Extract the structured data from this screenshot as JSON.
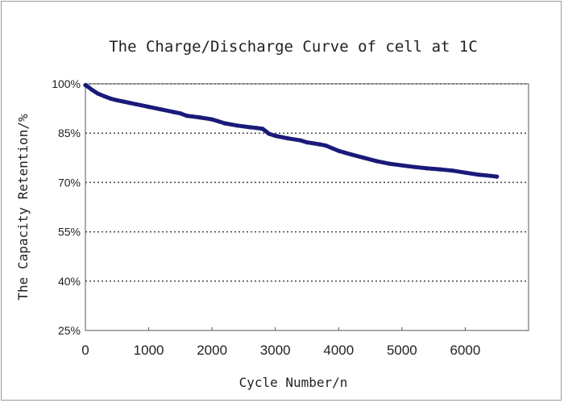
{
  "chart_data": {
    "type": "line",
    "title": "The Charge/Discharge Curve of cell at 1C",
    "xlabel": "Cycle Number/n",
    "ylabel": "The Capacity Retention/%",
    "xlim": [
      0,
      7000
    ],
    "ylim": [
      25,
      100
    ],
    "x_ticks": [
      0,
      1000,
      2000,
      3000,
      4000,
      5000,
      6000
    ],
    "x_tick_labels": [
      "0",
      "1000",
      "2000",
      "3000",
      "4000",
      "5000",
      "6000"
    ],
    "y_ticks": [
      25,
      40,
      55,
      70,
      85,
      100
    ],
    "y_tick_labels": [
      "25%",
      "40%",
      "55%",
      "70%",
      "85%",
      "100%"
    ],
    "grid": "horizontal-dotted",
    "series": [
      {
        "color": "#1a1a7a",
        "x": [
          0,
          50,
          100,
          200,
          300,
          400,
          500,
          600,
          700,
          800,
          1000,
          1200,
          1400,
          1500,
          1600,
          1800,
          2000,
          2100,
          2200,
          2400,
          2600,
          2700,
          2800,
          2850,
          2900,
          3000,
          3200,
          3400,
          3500,
          3600,
          3700,
          3800,
          4000,
          4200,
          4400,
          4600,
          4800,
          5000,
          5200,
          5400,
          5600,
          5800,
          6000,
          6200,
          6400,
          6500
        ],
        "values": [
          99.6,
          99.0,
          98.2,
          97.0,
          96.2,
          95.5,
          95.0,
          94.6,
          94.2,
          93.8,
          93.0,
          92.2,
          91.4,
          91.0,
          90.3,
          89.8,
          89.2,
          88.6,
          88.0,
          87.3,
          86.8,
          86.6,
          86.3,
          85.6,
          84.8,
          84.2,
          83.4,
          82.8,
          82.2,
          81.9,
          81.6,
          81.2,
          79.6,
          78.5,
          77.5,
          76.5,
          75.7,
          75.2,
          74.7,
          74.3,
          74.0,
          73.6,
          73.0,
          72.4,
          72.0,
          71.8
        ]
      }
    ]
  }
}
